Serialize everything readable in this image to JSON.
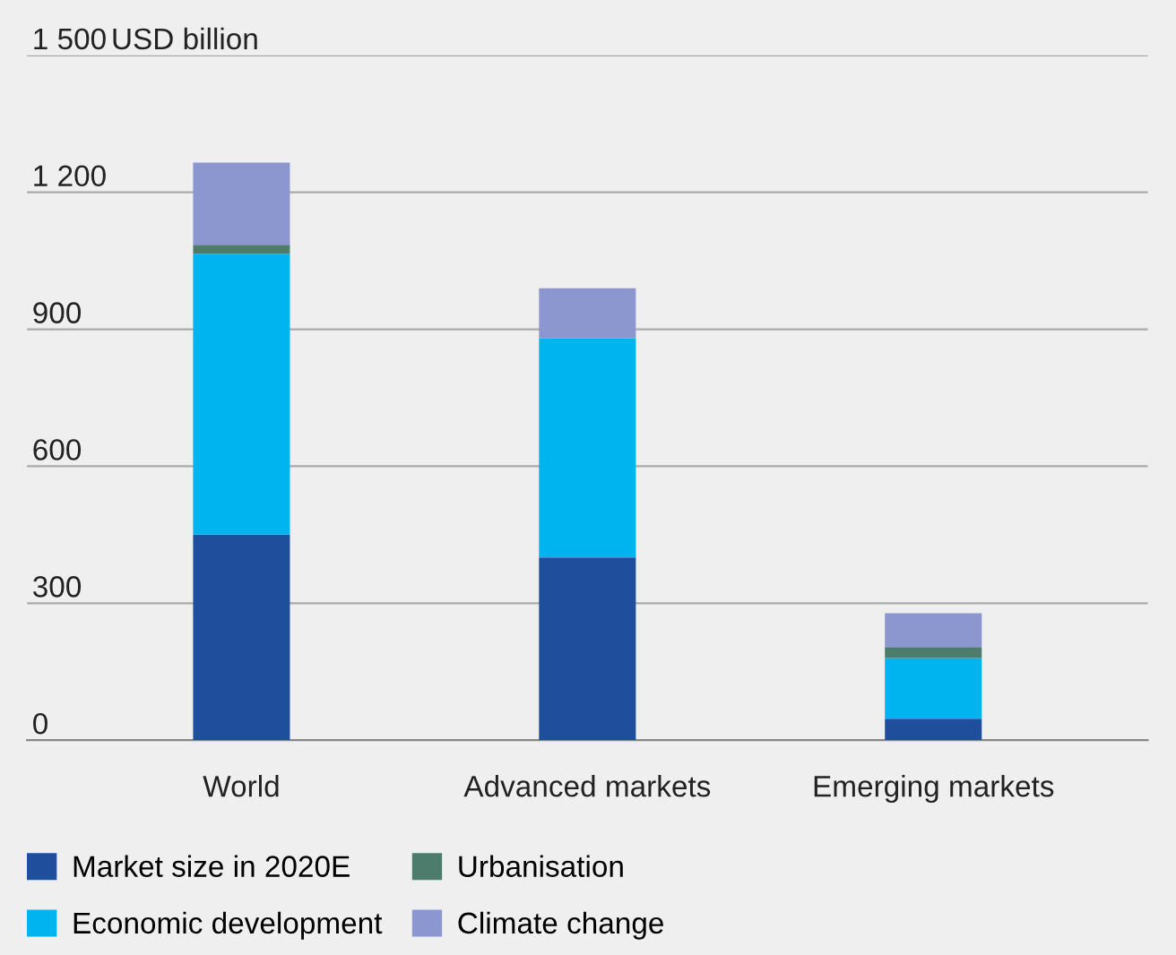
{
  "chart_data": {
    "type": "bar",
    "stacked": true,
    "ylabel": "USD billion",
    "categories": [
      "World",
      "Advanced markets",
      "Emerging markets"
    ],
    "series": [
      {
        "name": "Market size in 2020E",
        "color": "#1f4e9c",
        "values": [
          450,
          400,
          47
        ]
      },
      {
        "name": "Economic development",
        "color": "#00b5ef",
        "values": [
          615,
          480,
          133
        ]
      },
      {
        "name": "Urbanisation",
        "color": "#4d7c6d",
        "values": [
          20,
          0,
          24
        ]
      },
      {
        "name": "Climate change",
        "color": "#8c96cf",
        "values": [
          180,
          110,
          74
        ]
      }
    ],
    "ylim": [
      0,
      1500
    ],
    "yticks": [
      0,
      300,
      600,
      900,
      {
        "value": 1200,
        "label": "1 200"
      },
      {
        "value": 1500,
        "label": "1 500"
      }
    ],
    "grid": "y",
    "legend": "bottom"
  }
}
